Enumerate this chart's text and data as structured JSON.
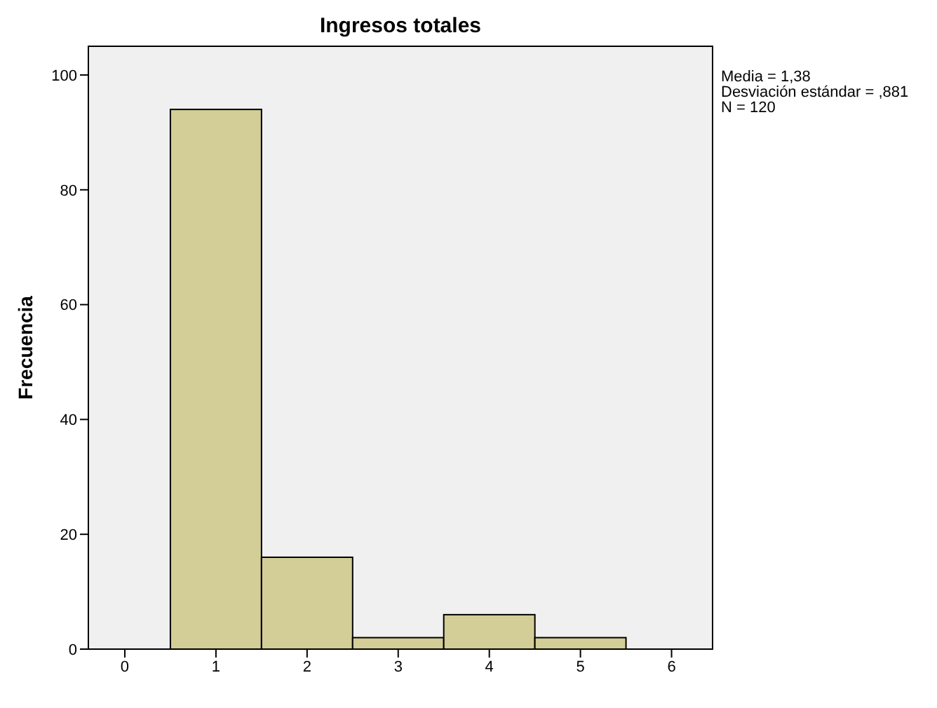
{
  "chart_data": {
    "type": "histogram",
    "title": "Ingresos totales",
    "ylabel": "Frecuencia",
    "bins": [
      0.5,
      1.5,
      2.5,
      3.5,
      4.5,
      5.5
    ],
    "values": [
      94,
      16,
      2,
      6,
      2
    ],
    "color": "#d3ce97",
    "xlim": [
      -0.4,
      6.45
    ],
    "xticks": [
      0,
      1,
      2,
      3,
      4,
      5,
      6
    ],
    "ylim": [
      0,
      105
    ],
    "yticks": [
      0,
      20,
      40,
      60,
      80,
      100
    ],
    "annotations": [
      "Media = 1,38",
      "Desviación estándar = ,881",
      "N = 120"
    ]
  }
}
